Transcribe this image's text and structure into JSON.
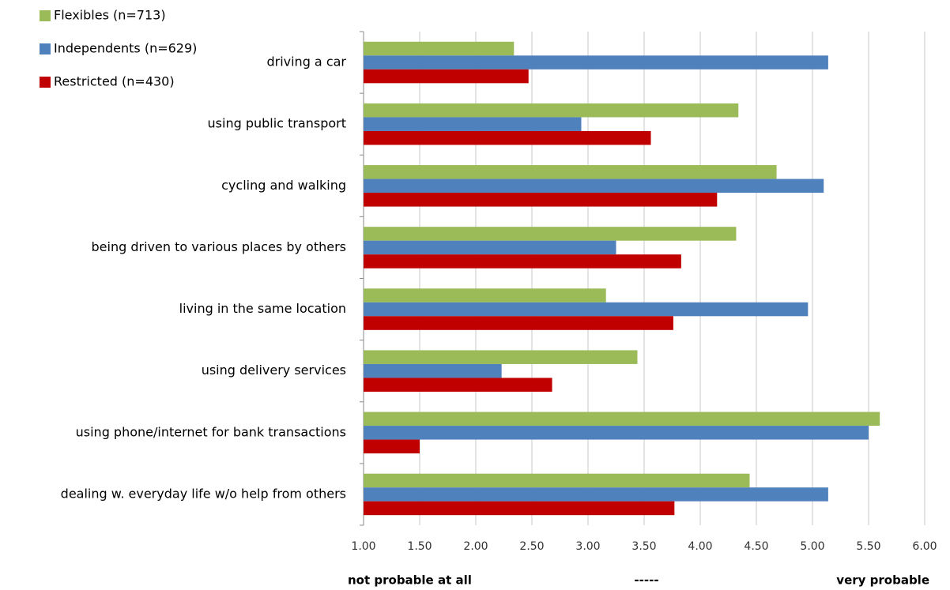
{
  "chart_data": {
    "type": "hbar",
    "categories": [
      "driving a car",
      "using public transport",
      "cycling and walking",
      "being driven to various places by others",
      "living in the same location",
      "using delivery services",
      "using phone/internet for bank transactions",
      "dealing w. everyday life w/o help from others"
    ],
    "series": [
      {
        "name": "Flexibles (n=713)",
        "color": "#9bbb59",
        "values": [
          2.34,
          4.34,
          4.68,
          4.32,
          3.16,
          3.44,
          5.6,
          4.44
        ]
      },
      {
        "name": "Independents (n=629)",
        "color": "#4f81bd",
        "values": [
          5.14,
          2.94,
          5.1,
          3.25,
          4.96,
          2.23,
          5.5,
          5.14
        ]
      },
      {
        "name": "Restricted (n=430)",
        "color": "#c00000",
        "values": [
          2.47,
          3.56,
          4.15,
          3.83,
          3.76,
          2.68,
          1.5,
          3.77
        ]
      }
    ],
    "xlim": [
      1,
      6
    ],
    "xticks": [
      {
        "value": 1,
        "label": "1.00"
      },
      {
        "value": 1.5,
        "label": "1.50"
      },
      {
        "value": 2,
        "label": "2.00"
      },
      {
        "value": 2.5,
        "label": "2.50"
      },
      {
        "value": 3,
        "label": "3.00"
      },
      {
        "value": 3.5,
        "label": "3.50"
      },
      {
        "value": 4,
        "label": "4.00"
      },
      {
        "value": 4.5,
        "label": "4.50"
      },
      {
        "value": 5,
        "label": "5.00"
      },
      {
        "value": 5.5,
        "label": "5.50"
      },
      {
        "value": 6,
        "label": "6.00"
      }
    ],
    "grid": true,
    "scale_labels": [
      "not probable  at all",
      "-----",
      "very probable"
    ],
    "legend": "top-left"
  }
}
